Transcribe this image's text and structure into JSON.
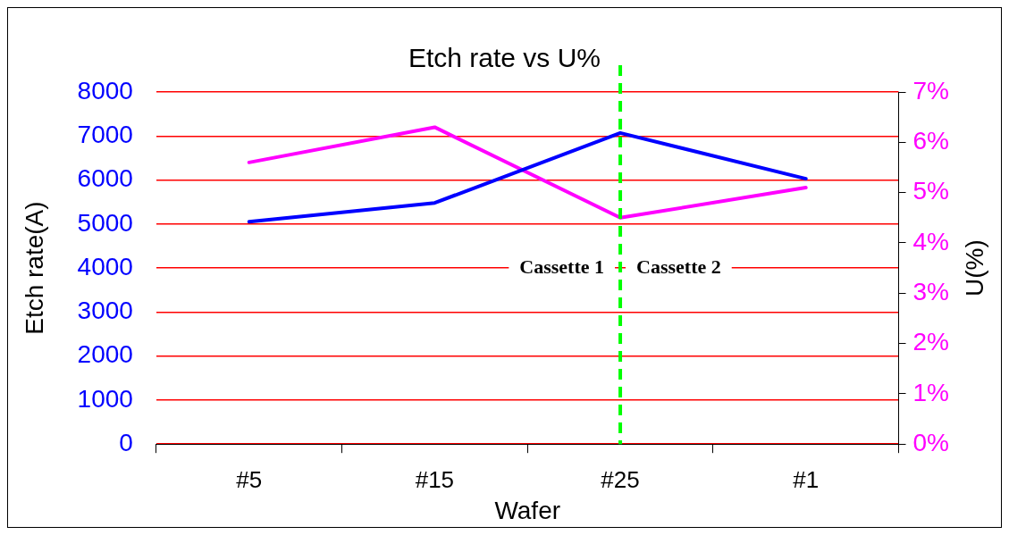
{
  "chart_data": {
    "type": "line",
    "title": "Etch rate vs U%",
    "xlabel": "Wafer",
    "ylabel": "Etch rate(A)",
    "y2label": "U(%)",
    "categories": [
      "#5",
      "#15",
      "#25",
      "#1"
    ],
    "series": [
      {
        "color": "#0000ff",
        "values": [
          5050,
          5480,
          7070,
          6030
        ]
      },
      {
        "color": "#ff00ff",
        "values": [
          5.6,
          6.3,
          4.5,
          5.1
        ],
        "axis": "y2"
      }
    ],
    "ylim": [
      0,
      8000
    ],
    "yticks": [
      0,
      1000,
      2000,
      3000,
      4000,
      5000,
      6000,
      7000,
      8000
    ],
    "y2lim": [
      0,
      7
    ],
    "y2ticks": [
      {
        "value": 0,
        "label": "0%"
      },
      {
        "value": 1,
        "label": "1%"
      },
      {
        "value": 2,
        "label": "2%"
      },
      {
        "value": 3,
        "label": "3%"
      },
      {
        "value": 4,
        "label": "4%"
      },
      {
        "value": 5,
        "label": "5%"
      },
      {
        "value": 6,
        "label": "6%"
      },
      {
        "value": 7,
        "label": "7%"
      }
    ],
    "grid": "y",
    "legend": false,
    "marker": "none",
    "line_style": "solid",
    "ref_lines": [
      {
        "axis": "x",
        "value": "#25",
        "color": "#00ff00",
        "line_style": "dashed"
      }
    ],
    "annotations": [
      "Cassette 1",
      "Cassette 2"
    ]
  }
}
